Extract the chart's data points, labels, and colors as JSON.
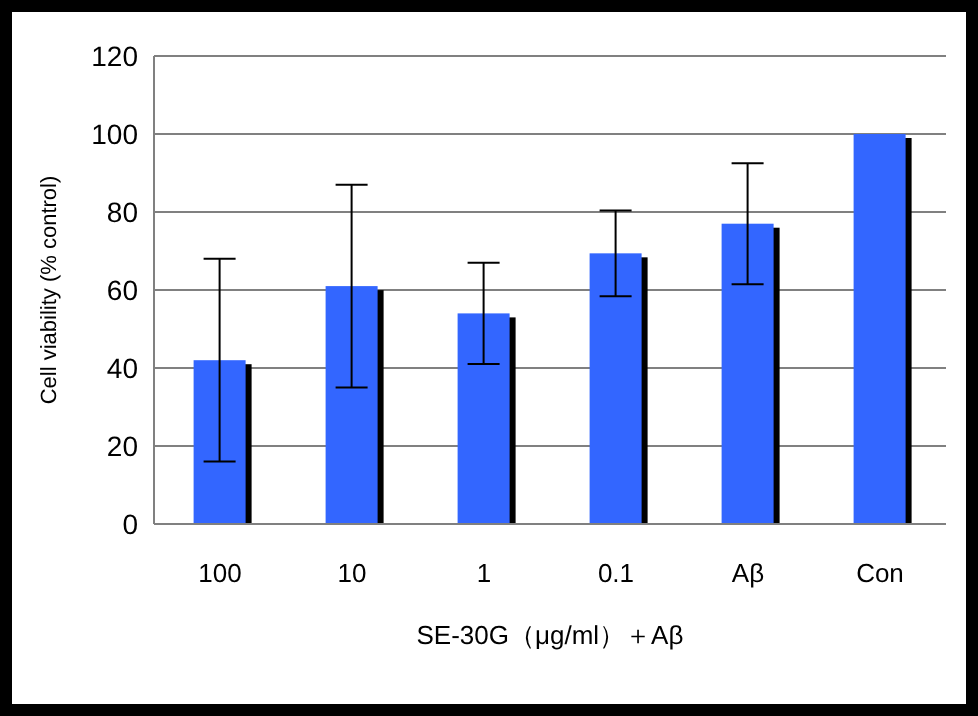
{
  "chart_data": {
    "type": "bar",
    "xlabel": "SE-30G（μg/ml）＋Aβ",
    "ylabel": "Cell viability (% control)",
    "categories": [
      "100",
      "10",
      "1",
      "0.1",
      "Aβ",
      "Con"
    ],
    "values": [
      42,
      61,
      54,
      69.4,
      77,
      100
    ],
    "errors": [
      26,
      26,
      13,
      11,
      15.5,
      null
    ],
    "color": "#3366ff",
    "ylim": [
      0,
      120
    ],
    "yticks": [
      0,
      20,
      40,
      60,
      80,
      100,
      120
    ],
    "grid": "y",
    "legend": false
  }
}
